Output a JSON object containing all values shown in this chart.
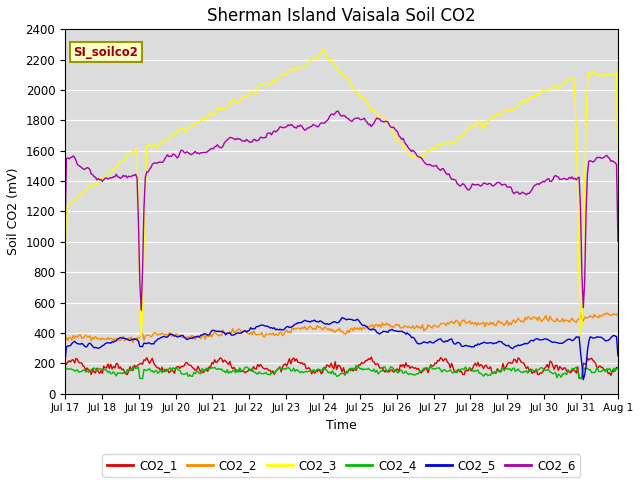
{
  "title": "Sherman Island Vaisala Soil CO2",
  "xlabel": "Time",
  "ylabel": "Soil CO2 (mV)",
  "label_box": "SI_soilco2",
  "ylim": [
    0,
    2400
  ],
  "background_color": "#dcdcdc",
  "plot_bg": "#dcdcdc",
  "line_colors": {
    "CO2_1": "#dd0000",
    "CO2_2": "#ff8800",
    "CO2_3": "#ffff00",
    "CO2_4": "#00bb00",
    "CO2_5": "#0000dd",
    "CO2_6": "#aa00aa"
  },
  "x_tick_labels": [
    "Jul 17",
    "Jul 18",
    "Jul 19",
    "Jul 20",
    "Jul 21",
    "Jul 22",
    "Jul 23",
    "Jul 24",
    "Jul 25",
    "Jul 26",
    "Jul 27",
    "Jul 28",
    "Jul 29",
    "Jul 30",
    "Jul 31",
    "Aug 1"
  ],
  "yticks": [
    0,
    200,
    400,
    600,
    800,
    1000,
    1200,
    1400,
    1600,
    1800,
    2000,
    2200,
    2400
  ],
  "num_points": 400
}
